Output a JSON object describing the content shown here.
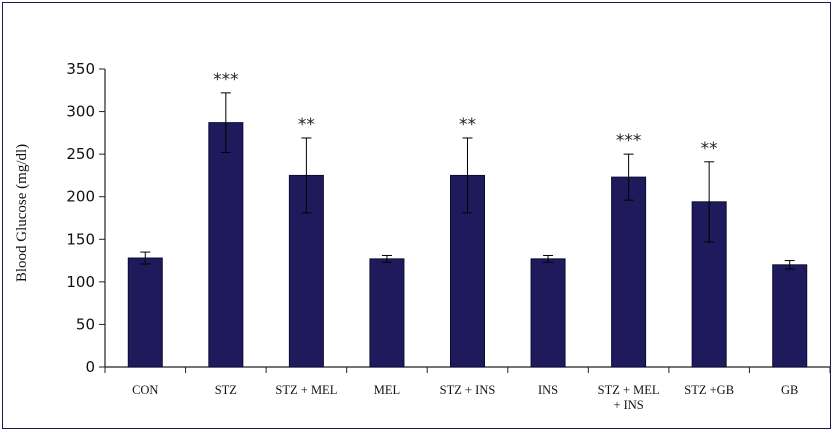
{
  "chart_data": {
    "type": "bar",
    "title": "",
    "xlabel": "",
    "ylabel": "Blood Glucose (mg/dl)",
    "ylim": [
      0,
      350
    ],
    "yticks": [
      0,
      50,
      100,
      150,
      200,
      250,
      300,
      350
    ],
    "grid": false,
    "legend": "none",
    "bar_color": "#1f1a5c",
    "categories": [
      [
        "CON"
      ],
      [
        "STZ"
      ],
      [
        "STZ + MEL"
      ],
      [
        "MEL"
      ],
      [
        "STZ + INS"
      ],
      [
        "INS"
      ],
      [
        "STZ + MEL",
        "+ INS"
      ],
      [
        "STZ +GB"
      ],
      [
        "GB"
      ]
    ],
    "values": [
      128,
      287,
      225,
      127,
      225,
      127,
      223,
      194,
      120
    ],
    "errors": [
      7,
      35,
      44,
      4,
      44,
      4,
      27,
      47,
      5
    ],
    "significance": [
      "",
      "***",
      "**",
      "",
      "**",
      "",
      "***",
      "**",
      ""
    ]
  }
}
